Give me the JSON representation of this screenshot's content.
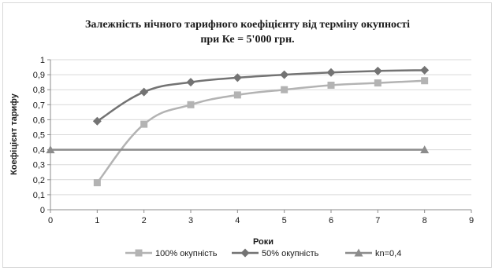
{
  "chart_data": {
    "type": "line",
    "title": [
      "Залежність нічного тарифного коефіцієнту від терміну окупності",
      "при Ке = 5'000 грн."
    ],
    "xlabel": "Роки",
    "ylabel": "Коефіцієнт тарифу",
    "xlim": [
      0,
      9
    ],
    "ylim": [
      0,
      1
    ],
    "xticks": [
      "0",
      "1",
      "2",
      "3",
      "4",
      "5",
      "6",
      "7",
      "8",
      "9"
    ],
    "yticks": [
      "0",
      "0,1",
      "0,2",
      "0,3",
      "0,4",
      "0,5",
      "0,6",
      "0,7",
      "0,8",
      "0,9",
      "1"
    ],
    "grid": "horizontal",
    "legend_position": "bottom",
    "smooth": true,
    "series": [
      {
        "name": "100% окупність",
        "color": "#b3b3b3",
        "marker": "square",
        "x": [
          1,
          2,
          3,
          4,
          5,
          6,
          7,
          8
        ],
        "y": [
          0.18,
          0.57,
          0.7,
          0.765,
          0.8,
          0.83,
          0.845,
          0.86
        ]
      },
      {
        "name": "50% окупність",
        "color": "#737373",
        "marker": "diamond",
        "x": [
          1,
          2,
          3,
          4,
          5,
          6,
          7,
          8
        ],
        "y": [
          0.59,
          0.785,
          0.85,
          0.88,
          0.9,
          0.915,
          0.925,
          0.93
        ]
      },
      {
        "name": "kn=0,4",
        "color": "#8c8c8c",
        "marker": "triangle",
        "x": [
          0,
          8
        ],
        "y": [
          0.4,
          0.4
        ]
      }
    ]
  }
}
